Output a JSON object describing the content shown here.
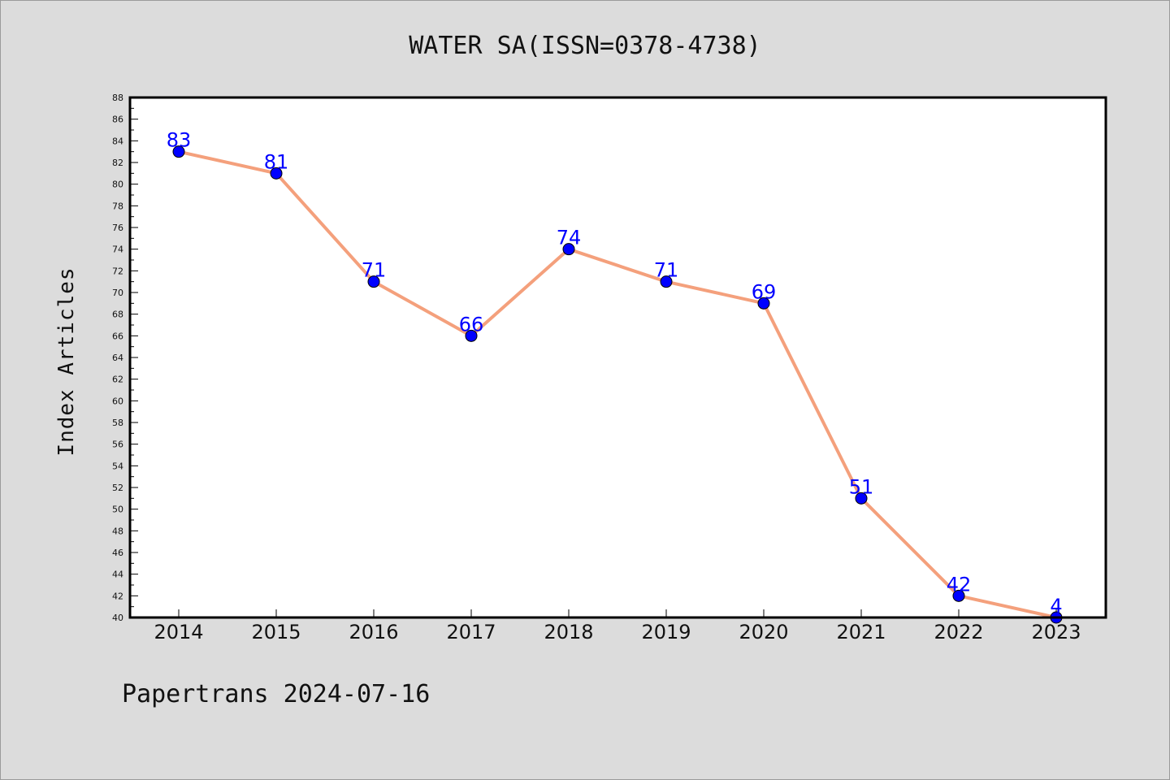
{
  "chart_data": {
    "type": "line",
    "title": "WATER SA(ISSN=0378-4738)",
    "ylabel": "Index Articles",
    "xlabel": "",
    "categories": [
      "2014",
      "2015",
      "2016",
      "2017",
      "2018",
      "2019",
      "2020",
      "2021",
      "2022",
      "2023"
    ],
    "series": [
      {
        "values": [
          83,
          81,
          71,
          66,
          74,
          71,
          69,
          51,
          42,
          4
        ],
        "line_color": "#f4a07c",
        "marker_color": "#0000ff",
        "label_color": "#0000ff"
      }
    ],
    "ylim": [
      40,
      88
    ],
    "yticks": [
      40,
      42,
      44,
      46,
      48,
      50,
      52,
      54,
      56,
      58,
      60,
      62,
      64,
      66,
      68,
      70,
      72,
      74,
      76,
      78,
      80,
      82,
      84,
      86,
      88
    ],
    "grid": false,
    "legend": "none"
  },
  "footer": {
    "text": "Papertrans 2024-07-16"
  }
}
